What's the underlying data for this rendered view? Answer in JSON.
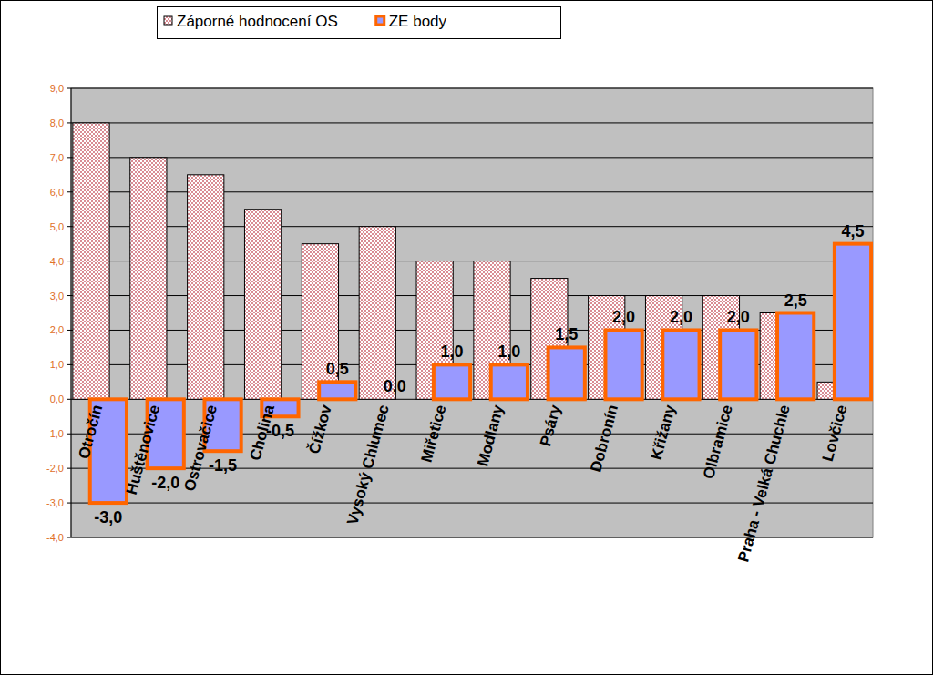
{
  "chart_data": {
    "type": "bar",
    "categories": [
      "Otročín",
      "Huštěnovice",
      "Ostrovačice",
      "Cholina",
      "Čížkov",
      "Vysoký Chlumec",
      "Miřetice",
      "Modlany",
      "Psáry",
      "Dobronín",
      "Křižany",
      "Olbramice",
      "Praha - Velká Chuchle",
      "Lovčice"
    ],
    "series": [
      {
        "name": "Záporné hodnocení OS",
        "color": "#d98c94",
        "values": [
          8.0,
          7.0,
          6.5,
          5.5,
          4.5,
          5.0,
          4.0,
          4.0,
          3.5,
          3.0,
          3.0,
          3.0,
          2.5,
          0.5
        ]
      },
      {
        "name": "ZE body",
        "color": "#9999ff",
        "data_labels": true,
        "values": [
          -3.0,
          -2.0,
          -1.5,
          -0.5,
          0.5,
          0.0,
          1.0,
          1.0,
          1.5,
          2.0,
          2.0,
          2.0,
          2.5,
          4.5
        ],
        "value_labels": [
          "-3,0",
          "-2,0",
          "-1,5",
          "-0,5",
          "0,5",
          "0,0",
          "1,0",
          "1,0",
          "1,5",
          "2,0",
          "2,0",
          "2,0",
          "2,5",
          "4,5"
        ]
      }
    ],
    "ylim": [
      -4,
      9
    ],
    "yticks": [
      {
        "value": -4,
        "label": "-4,0"
      },
      {
        "value": -3,
        "label": "-3,0"
      },
      {
        "value": -2,
        "label": "-2,0"
      },
      {
        "value": -1,
        "label": "-1,0"
      },
      {
        "value": 0,
        "label": "0,0"
      },
      {
        "value": 1,
        "label": "1,0"
      },
      {
        "value": 2,
        "label": "2,0"
      },
      {
        "value": 3,
        "label": "3,0"
      },
      {
        "value": 4,
        "label": "4,0"
      },
      {
        "value": 5,
        "label": "5,0"
      },
      {
        "value": 6,
        "label": "6,0"
      },
      {
        "value": 7,
        "label": "7,0"
      },
      {
        "value": 8,
        "label": "8,0"
      },
      {
        "value": 9,
        "label": "9,0"
      }
    ],
    "grid": true,
    "legend": "top"
  }
}
